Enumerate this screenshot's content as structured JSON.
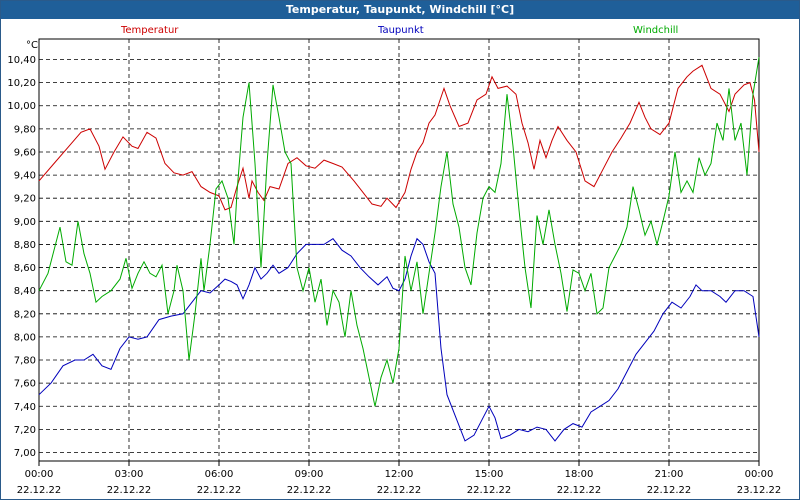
{
  "window": {
    "title": "Temperatur, Taupunkt, Windchill [°C]"
  },
  "colors": {
    "temperatur": "#cc0000",
    "taupunkt": "#0000bb",
    "windchill": "#00aa00",
    "titlebar": "#1f5f99"
  },
  "chart_data": {
    "type": "line",
    "title": "Temperatur, Taupunkt, Windchill [°C]",
    "ylabel": "°C",
    "xlabel": "",
    "ylim": [
      7.0,
      10.5
    ],
    "xlim": [
      0,
      24
    ],
    "grid": true,
    "yticks": [
      "10,40",
      "10,20",
      "10,00",
      "9,80",
      "9,60",
      "9,40",
      "9,20",
      "9,00",
      "8,80",
      "8,60",
      "8,40",
      "8,20",
      "8,00",
      "7,80",
      "7,60",
      "7,40",
      "7,20",
      "7,00"
    ],
    "ytick_values": [
      10.4,
      10.2,
      10.0,
      9.8,
      9.6,
      9.4,
      9.2,
      9.0,
      8.8,
      8.6,
      8.4,
      8.2,
      8.0,
      7.8,
      7.6,
      7.4,
      7.2,
      7.0
    ],
    "xticks": [
      {
        "time": "00:00",
        "date": "22.12.22",
        "hour": 0
      },
      {
        "time": "03:00",
        "date": "22.12.22",
        "hour": 3
      },
      {
        "time": "06:00",
        "date": "22.12.22",
        "hour": 6
      },
      {
        "time": "09:00",
        "date": "22.12.22",
        "hour": 9
      },
      {
        "time": "12:00",
        "date": "22.12.22",
        "hour": 12
      },
      {
        "time": "15:00",
        "date": "22.12.22",
        "hour": 15
      },
      {
        "time": "18:00",
        "date": "22.12.22",
        "hour": 18
      },
      {
        "time": "21:00",
        "date": "22.12.22",
        "hour": 21
      },
      {
        "time": "00:00",
        "date": "23.12.22",
        "hour": 24
      }
    ],
    "legend": [
      "Temperatur",
      "Taupunkt",
      "Windchill"
    ],
    "series": [
      {
        "name": "Temperatur",
        "color": "#cc0000",
        "points": [
          [
            0,
            9.35
          ],
          [
            0.5,
            9.5
          ],
          [
            1,
            9.65
          ],
          [
            1.4,
            9.77
          ],
          [
            1.7,
            9.8
          ],
          [
            2,
            9.65
          ],
          [
            2.2,
            9.45
          ],
          [
            2.5,
            9.6
          ],
          [
            2.8,
            9.73
          ],
          [
            3.1,
            9.65
          ],
          [
            3.3,
            9.63
          ],
          [
            3.6,
            9.77
          ],
          [
            3.9,
            9.72
          ],
          [
            4.2,
            9.5
          ],
          [
            4.5,
            9.42
          ],
          [
            4.8,
            9.4
          ],
          [
            5.1,
            9.43
          ],
          [
            5.4,
            9.3
          ],
          [
            5.7,
            9.25
          ],
          [
            6.0,
            9.22
          ],
          [
            6.2,
            9.1
          ],
          [
            6.4,
            9.12
          ],
          [
            6.6,
            9.3
          ],
          [
            6.8,
            9.46
          ],
          [
            7.0,
            9.2
          ],
          [
            7.1,
            9.35
          ],
          [
            7.3,
            9.25
          ],
          [
            7.5,
            9.18
          ],
          [
            7.7,
            9.3
          ],
          [
            8.0,
            9.28
          ],
          [
            8.3,
            9.5
          ],
          [
            8.6,
            9.55
          ],
          [
            8.9,
            9.48
          ],
          [
            9.2,
            9.46
          ],
          [
            9.5,
            9.53
          ],
          [
            9.8,
            9.5
          ],
          [
            10.1,
            9.47
          ],
          [
            10.5,
            9.35
          ],
          [
            10.8,
            9.25
          ],
          [
            11.1,
            9.15
          ],
          [
            11.4,
            9.13
          ],
          [
            11.6,
            9.2
          ],
          [
            11.9,
            9.12
          ],
          [
            12.2,
            9.25
          ],
          [
            12.4,
            9.45
          ],
          [
            12.6,
            9.6
          ],
          [
            12.8,
            9.68
          ],
          [
            13.0,
            9.85
          ],
          [
            13.2,
            9.92
          ],
          [
            13.5,
            10.15
          ],
          [
            13.7,
            10.0
          ],
          [
            14.0,
            9.82
          ],
          [
            14.3,
            9.85
          ],
          [
            14.6,
            10.05
          ],
          [
            14.9,
            10.1
          ],
          [
            15.1,
            10.25
          ],
          [
            15.3,
            10.15
          ],
          [
            15.6,
            10.17
          ],
          [
            15.9,
            10.1
          ],
          [
            16.1,
            9.85
          ],
          [
            16.3,
            9.68
          ],
          [
            16.5,
            9.45
          ],
          [
            16.7,
            9.7
          ],
          [
            16.9,
            9.55
          ],
          [
            17.1,
            9.7
          ],
          [
            17.3,
            9.82
          ],
          [
            17.6,
            9.7
          ],
          [
            17.9,
            9.6
          ],
          [
            18.2,
            9.35
          ],
          [
            18.5,
            9.3
          ],
          [
            18.8,
            9.45
          ],
          [
            19.1,
            9.6
          ],
          [
            19.4,
            9.72
          ],
          [
            19.7,
            9.85
          ],
          [
            20.0,
            10.03
          ],
          [
            20.2,
            9.9
          ],
          [
            20.4,
            9.8
          ],
          [
            20.7,
            9.75
          ],
          [
            21.0,
            9.85
          ],
          [
            21.3,
            10.15
          ],
          [
            21.6,
            10.25
          ],
          [
            21.8,
            10.3
          ],
          [
            22.1,
            10.35
          ],
          [
            22.4,
            10.15
          ],
          [
            22.7,
            10.1
          ],
          [
            23.0,
            9.95
          ],
          [
            23.2,
            10.1
          ],
          [
            23.5,
            10.18
          ],
          [
            23.7,
            10.2
          ],
          [
            23.85,
            10.05
          ],
          [
            24.0,
            9.6
          ]
        ]
      },
      {
        "name": "Taupunkt",
        "color": "#0000bb",
        "points": [
          [
            0,
            7.5
          ],
          [
            0.4,
            7.6
          ],
          [
            0.8,
            7.75
          ],
          [
            1.2,
            7.8
          ],
          [
            1.5,
            7.8
          ],
          [
            1.8,
            7.85
          ],
          [
            2.1,
            7.75
          ],
          [
            2.4,
            7.72
          ],
          [
            2.7,
            7.9
          ],
          [
            3.0,
            8.0
          ],
          [
            3.3,
            7.98
          ],
          [
            3.6,
            8.0
          ],
          [
            4.0,
            8.15
          ],
          [
            4.4,
            8.18
          ],
          [
            4.8,
            8.2
          ],
          [
            5.1,
            8.3
          ],
          [
            5.4,
            8.4
          ],
          [
            5.7,
            8.38
          ],
          [
            6.0,
            8.45
          ],
          [
            6.2,
            8.5
          ],
          [
            6.4,
            8.48
          ],
          [
            6.6,
            8.45
          ],
          [
            6.8,
            8.33
          ],
          [
            7.0,
            8.45
          ],
          [
            7.2,
            8.6
          ],
          [
            7.4,
            8.5
          ],
          [
            7.6,
            8.55
          ],
          [
            7.8,
            8.62
          ],
          [
            8.0,
            8.55
          ],
          [
            8.3,
            8.6
          ],
          [
            8.6,
            8.72
          ],
          [
            8.9,
            8.8
          ],
          [
            9.2,
            8.8
          ],
          [
            9.5,
            8.8
          ],
          [
            9.8,
            8.85
          ],
          [
            10.1,
            8.75
          ],
          [
            10.4,
            8.7
          ],
          [
            10.7,
            8.6
          ],
          [
            11.0,
            8.52
          ],
          [
            11.3,
            8.45
          ],
          [
            11.6,
            8.52
          ],
          [
            11.8,
            8.42
          ],
          [
            12.0,
            8.4
          ],
          [
            12.2,
            8.5
          ],
          [
            12.4,
            8.7
          ],
          [
            12.6,
            8.85
          ],
          [
            12.8,
            8.8
          ],
          [
            13.0,
            8.65
          ],
          [
            13.2,
            8.55
          ],
          [
            13.4,
            7.9
          ],
          [
            13.6,
            7.5
          ],
          [
            13.9,
            7.3
          ],
          [
            14.2,
            7.1
          ],
          [
            14.5,
            7.15
          ],
          [
            14.8,
            7.3
          ],
          [
            15.0,
            7.4
          ],
          [
            15.2,
            7.3
          ],
          [
            15.4,
            7.12
          ],
          [
            15.7,
            7.15
          ],
          [
            16.0,
            7.2
          ],
          [
            16.3,
            7.18
          ],
          [
            16.6,
            7.22
          ],
          [
            16.9,
            7.2
          ],
          [
            17.2,
            7.1
          ],
          [
            17.5,
            7.2
          ],
          [
            17.8,
            7.25
          ],
          [
            18.1,
            7.22
          ],
          [
            18.4,
            7.35
          ],
          [
            18.7,
            7.4
          ],
          [
            19.0,
            7.45
          ],
          [
            19.3,
            7.55
          ],
          [
            19.6,
            7.7
          ],
          [
            19.9,
            7.85
          ],
          [
            20.2,
            7.95
          ],
          [
            20.5,
            8.05
          ],
          [
            20.8,
            8.2
          ],
          [
            21.1,
            8.3
          ],
          [
            21.4,
            8.25
          ],
          [
            21.7,
            8.35
          ],
          [
            21.9,
            8.45
          ],
          [
            22.1,
            8.4
          ],
          [
            22.4,
            8.4
          ],
          [
            22.7,
            8.35
          ],
          [
            22.9,
            8.3
          ],
          [
            23.2,
            8.4
          ],
          [
            23.5,
            8.4
          ],
          [
            23.8,
            8.35
          ],
          [
            24.0,
            8.0
          ]
        ]
      },
      {
        "name": "Windchill",
        "color": "#00aa00",
        "points": [
          [
            0,
            8.4
          ],
          [
            0.3,
            8.55
          ],
          [
            0.7,
            8.95
          ],
          [
            0.9,
            8.65
          ],
          [
            1.1,
            8.62
          ],
          [
            1.3,
            9.0
          ],
          [
            1.5,
            8.72
          ],
          [
            1.7,
            8.55
          ],
          [
            1.9,
            8.3
          ],
          [
            2.1,
            8.35
          ],
          [
            2.4,
            8.4
          ],
          [
            2.7,
            8.5
          ],
          [
            2.9,
            8.68
          ],
          [
            3.1,
            8.42
          ],
          [
            3.3,
            8.55
          ],
          [
            3.5,
            8.65
          ],
          [
            3.7,
            8.55
          ],
          [
            3.9,
            8.52
          ],
          [
            4.1,
            8.62
          ],
          [
            4.3,
            8.2
          ],
          [
            4.5,
            8.4
          ],
          [
            4.6,
            8.62
          ],
          [
            4.8,
            8.4
          ],
          [
            5.0,
            7.8
          ],
          [
            5.2,
            8.2
          ],
          [
            5.4,
            8.68
          ],
          [
            5.5,
            8.4
          ],
          [
            5.7,
            8.8
          ],
          [
            5.9,
            9.28
          ],
          [
            6.1,
            9.35
          ],
          [
            6.3,
            9.2
          ],
          [
            6.5,
            8.8
          ],
          [
            6.6,
            9.25
          ],
          [
            6.8,
            9.9
          ],
          [
            7.0,
            10.2
          ],
          [
            7.2,
            9.5
          ],
          [
            7.4,
            8.6
          ],
          [
            7.6,
            9.5
          ],
          [
            7.8,
            10.18
          ],
          [
            8.0,
            9.9
          ],
          [
            8.2,
            9.6
          ],
          [
            8.4,
            9.5
          ],
          [
            8.6,
            8.6
          ],
          [
            8.8,
            8.4
          ],
          [
            9.0,
            8.6
          ],
          [
            9.2,
            8.3
          ],
          [
            9.4,
            8.5
          ],
          [
            9.6,
            8.1
          ],
          [
            9.8,
            8.4
          ],
          [
            10.0,
            8.3
          ],
          [
            10.2,
            8.0
          ],
          [
            10.4,
            8.4
          ],
          [
            10.6,
            8.1
          ],
          [
            10.8,
            7.9
          ],
          [
            11.0,
            7.65
          ],
          [
            11.2,
            7.4
          ],
          [
            11.4,
            7.65
          ],
          [
            11.6,
            7.8
          ],
          [
            11.8,
            7.6
          ],
          [
            12.0,
            7.9
          ],
          [
            12.2,
            8.7
          ],
          [
            12.4,
            8.4
          ],
          [
            12.6,
            8.65
          ],
          [
            12.8,
            8.2
          ],
          [
            13.0,
            8.55
          ],
          [
            13.2,
            8.9
          ],
          [
            13.4,
            9.3
          ],
          [
            13.6,
            9.6
          ],
          [
            13.8,
            9.15
          ],
          [
            14.0,
            8.95
          ],
          [
            14.2,
            8.6
          ],
          [
            14.4,
            8.45
          ],
          [
            14.6,
            8.9
          ],
          [
            14.8,
            9.2
          ],
          [
            15.0,
            9.3
          ],
          [
            15.2,
            9.25
          ],
          [
            15.4,
            9.5
          ],
          [
            15.6,
            10.1
          ],
          [
            15.8,
            9.65
          ],
          [
            16.0,
            9.1
          ],
          [
            16.2,
            8.6
          ],
          [
            16.4,
            8.25
          ],
          [
            16.6,
            9.05
          ],
          [
            16.8,
            8.8
          ],
          [
            17.0,
            9.1
          ],
          [
            17.2,
            8.8
          ],
          [
            17.4,
            8.55
          ],
          [
            17.6,
            8.22
          ],
          [
            17.8,
            8.58
          ],
          [
            18.0,
            8.55
          ],
          [
            18.2,
            8.4
          ],
          [
            18.4,
            8.55
          ],
          [
            18.6,
            8.2
          ],
          [
            18.8,
            8.25
          ],
          [
            19.0,
            8.6
          ],
          [
            19.2,
            8.7
          ],
          [
            19.4,
            8.8
          ],
          [
            19.6,
            8.95
          ],
          [
            19.8,
            9.3
          ],
          [
            20.0,
            9.1
          ],
          [
            20.2,
            8.88
          ],
          [
            20.4,
            9.0
          ],
          [
            20.6,
            8.8
          ],
          [
            20.8,
            9.0
          ],
          [
            21.0,
            9.22
          ],
          [
            21.2,
            9.6
          ],
          [
            21.4,
            9.25
          ],
          [
            21.6,
            9.35
          ],
          [
            21.8,
            9.25
          ],
          [
            22.0,
            9.55
          ],
          [
            22.2,
            9.4
          ],
          [
            22.4,
            9.5
          ],
          [
            22.6,
            9.85
          ],
          [
            22.8,
            9.7
          ],
          [
            23.0,
            10.15
          ],
          [
            23.2,
            9.7
          ],
          [
            23.4,
            9.85
          ],
          [
            23.6,
            9.4
          ],
          [
            23.8,
            10.1
          ],
          [
            24.0,
            10.42
          ]
        ]
      }
    ]
  }
}
